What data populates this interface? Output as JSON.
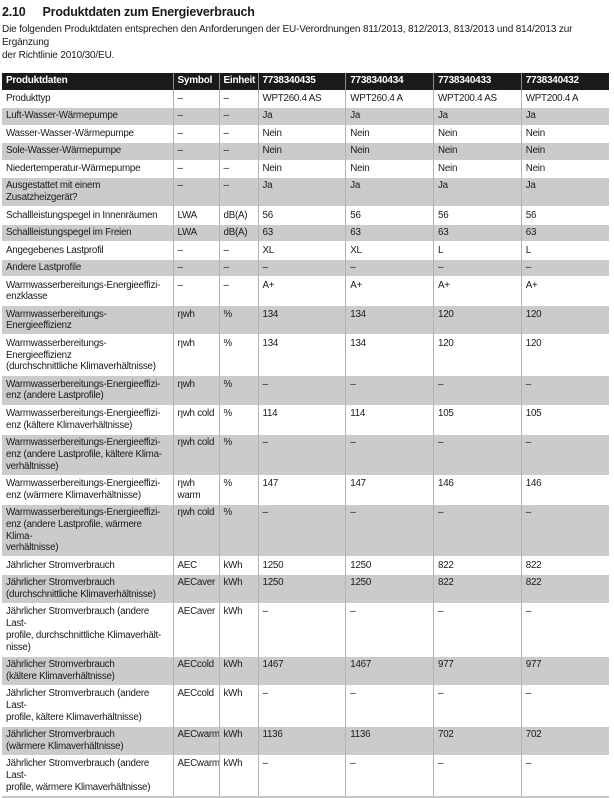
{
  "page": {
    "section_number": "2.10",
    "section_title": "Produktdaten zum Energieverbrauch",
    "intro": "Die folgenden Produktdaten entsprechen den Anforderungen der EU-Verordnungen 811/2013, 812/2013, 813/2013 und 814/2013 zur Ergänzung\nder Richtlinie 2010/30/EU."
  },
  "table": {
    "headers": [
      "Produktdaten",
      "Symbol",
      "Einheit",
      "7738340435",
      "7738340434",
      "7738340433",
      "7738340432"
    ],
    "rows": [
      {
        "label": "Produkttyp",
        "symbol": "–",
        "unit": "–",
        "values": [
          "WPT260.4 AS",
          "WPT260.4 A",
          "WPT200.4 AS",
          "WPT200.4 A"
        ]
      },
      {
        "label": "Luft-Wasser-Wärmepumpe",
        "symbol": "–",
        "unit": "–",
        "values": [
          "Ja",
          "Ja",
          "Ja",
          "Ja"
        ]
      },
      {
        "label": "Wasser-Wasser-Wärmepumpe",
        "symbol": "–",
        "unit": "–",
        "values": [
          "Nein",
          "Nein",
          "Nein",
          "Nein"
        ]
      },
      {
        "label": "Sole-Wasser-Wärmepumpe",
        "symbol": "–",
        "unit": "–",
        "values": [
          "Nein",
          "Nein",
          "Nein",
          "Nein"
        ]
      },
      {
        "label": "Niedertemperatur-Wärmepumpe",
        "symbol": "–",
        "unit": "–",
        "values": [
          "Nein",
          "Nein",
          "Nein",
          "Nein"
        ]
      },
      {
        "label": "Ausgestattet mit einem Zusatzheizgerät?",
        "symbol": "–",
        "unit": "–",
        "values": [
          "Ja",
          "Ja",
          "Ja",
          "Ja"
        ]
      },
      {
        "label": "Schallleistungspegel in Innenräumen",
        "symbol": "LWA",
        "unit": "dB(A)",
        "values": [
          "56",
          "56",
          "56",
          "56"
        ]
      },
      {
        "label": "Schallleistungspegel im Freien",
        "symbol": "LWA",
        "unit": "dB(A)",
        "values": [
          "63",
          "63",
          "63",
          "63"
        ]
      },
      {
        "label": "Angegebenes Lastprofil",
        "symbol": "–",
        "unit": "–",
        "values": [
          "XL",
          "XL",
          "L",
          "L"
        ]
      },
      {
        "label": "Andere Lastprofile",
        "symbol": "–",
        "unit": "–",
        "values": [
          "–",
          "–",
          "–",
          "–"
        ]
      },
      {
        "label": "Warmwasserbereitungs-Energieeffizi-\nenzklasse",
        "symbol": "–",
        "unit": "–",
        "values": [
          "A+",
          "A+",
          "A+",
          "A+"
        ]
      },
      {
        "label": "Warmwasserbereitungs-Energieeffizienz",
        "symbol": "ηwh",
        "unit": "%",
        "values": [
          "134",
          "134",
          "120",
          "120"
        ]
      },
      {
        "label": "Warmwasserbereitungs-Energieeffizienz\n(durchschnittliche Klimaverhältnisse)",
        "symbol": "ηwh",
        "unit": "%",
        "values": [
          "134",
          "134",
          "120",
          "120"
        ]
      },
      {
        "label": "Warmwasserbereitungs-Energieeffizi-\nenz (andere Lastprofile)",
        "symbol": "ηwh",
        "unit": "%",
        "values": [
          "–",
          "–",
          "–",
          "–"
        ]
      },
      {
        "label": "Warmwasserbereitungs-Energieeffizi-\nenz (kältere Klimaverhältnisse)",
        "symbol": "ηwh cold",
        "unit": "%",
        "values": [
          "114",
          "114",
          "105",
          "105"
        ]
      },
      {
        "label": "Warmwasserbereitungs-Energieeffizi-\nenz (andere Lastprofile, kältere Klima-\nverhältnisse)",
        "symbol": "ηwh cold",
        "unit": "%",
        "values": [
          "–",
          "–",
          "–",
          "–"
        ]
      },
      {
        "label": "Warmwasserbereitungs-Energieeffizi-\nenz (wärmere Klimaverhältnisse)",
        "symbol": "ηwh warm",
        "unit": "%",
        "values": [
          "147",
          "147",
          "146",
          "146"
        ]
      },
      {
        "label": "Warmwasserbereitungs-Energieeffizi-\nenz (andere Lastprofile, wärmere Klima-\nverhältnisse)",
        "symbol": "ηwh cold",
        "unit": "%",
        "values": [
          "–",
          "–",
          "–",
          "–"
        ]
      },
      {
        "label": "Jährlicher Stromverbrauch",
        "symbol": "AEC",
        "unit": "kWh",
        "values": [
          "1250",
          "1250",
          "822",
          "822"
        ]
      },
      {
        "label": "Jährlicher Stromverbrauch\n(durchschnittliche Klimaverhältnisse)",
        "symbol": "AECaver",
        "unit": "kWh",
        "values": [
          "1250",
          "1250",
          "822",
          "822"
        ]
      },
      {
        "label": "Jährlicher Stromverbrauch (andere Last-\nprofile, durchschnittliche Klimaverhält-\nnisse)",
        "symbol": "AECaver",
        "unit": "kWh",
        "values": [
          "–",
          "–",
          "–",
          "–"
        ]
      },
      {
        "label": "Jährlicher Stromverbrauch\n(kältere Klimaverhältnisse)",
        "symbol": "AECcold",
        "unit": "kWh",
        "values": [
          "1467",
          "1467",
          "977",
          "977"
        ]
      },
      {
        "label": "Jährlicher Stromverbrauch (andere Last-\nprofile, kältere Klimaverhältnisse)",
        "symbol": "AECcold",
        "unit": "kWh",
        "values": [
          "–",
          "–",
          "–",
          "–"
        ]
      },
      {
        "label": "Jährlicher Stromverbrauch\n(wärmere Klimaverhältnisse)",
        "symbol": "AECwarm",
        "unit": "kWh",
        "values": [
          "1136",
          "1136",
          "702",
          "702"
        ]
      },
      {
        "label": "Jährlicher Stromverbrauch (andere Last-\nprofile, wärmere Klimaverhältnisse)",
        "symbol": "AECwarm",
        "unit": "kWh",
        "values": [
          "–",
          "–",
          "–",
          "–"
        ]
      }
    ]
  },
  "colors": {
    "header_bg": "#1a1a1a",
    "header_text": "#ffffff",
    "row_stripe": "#cbcbcb",
    "grid_line": "#b3b3b3",
    "header_grid_line": "#8c8c8c",
    "text": "#1a1a1a"
  }
}
